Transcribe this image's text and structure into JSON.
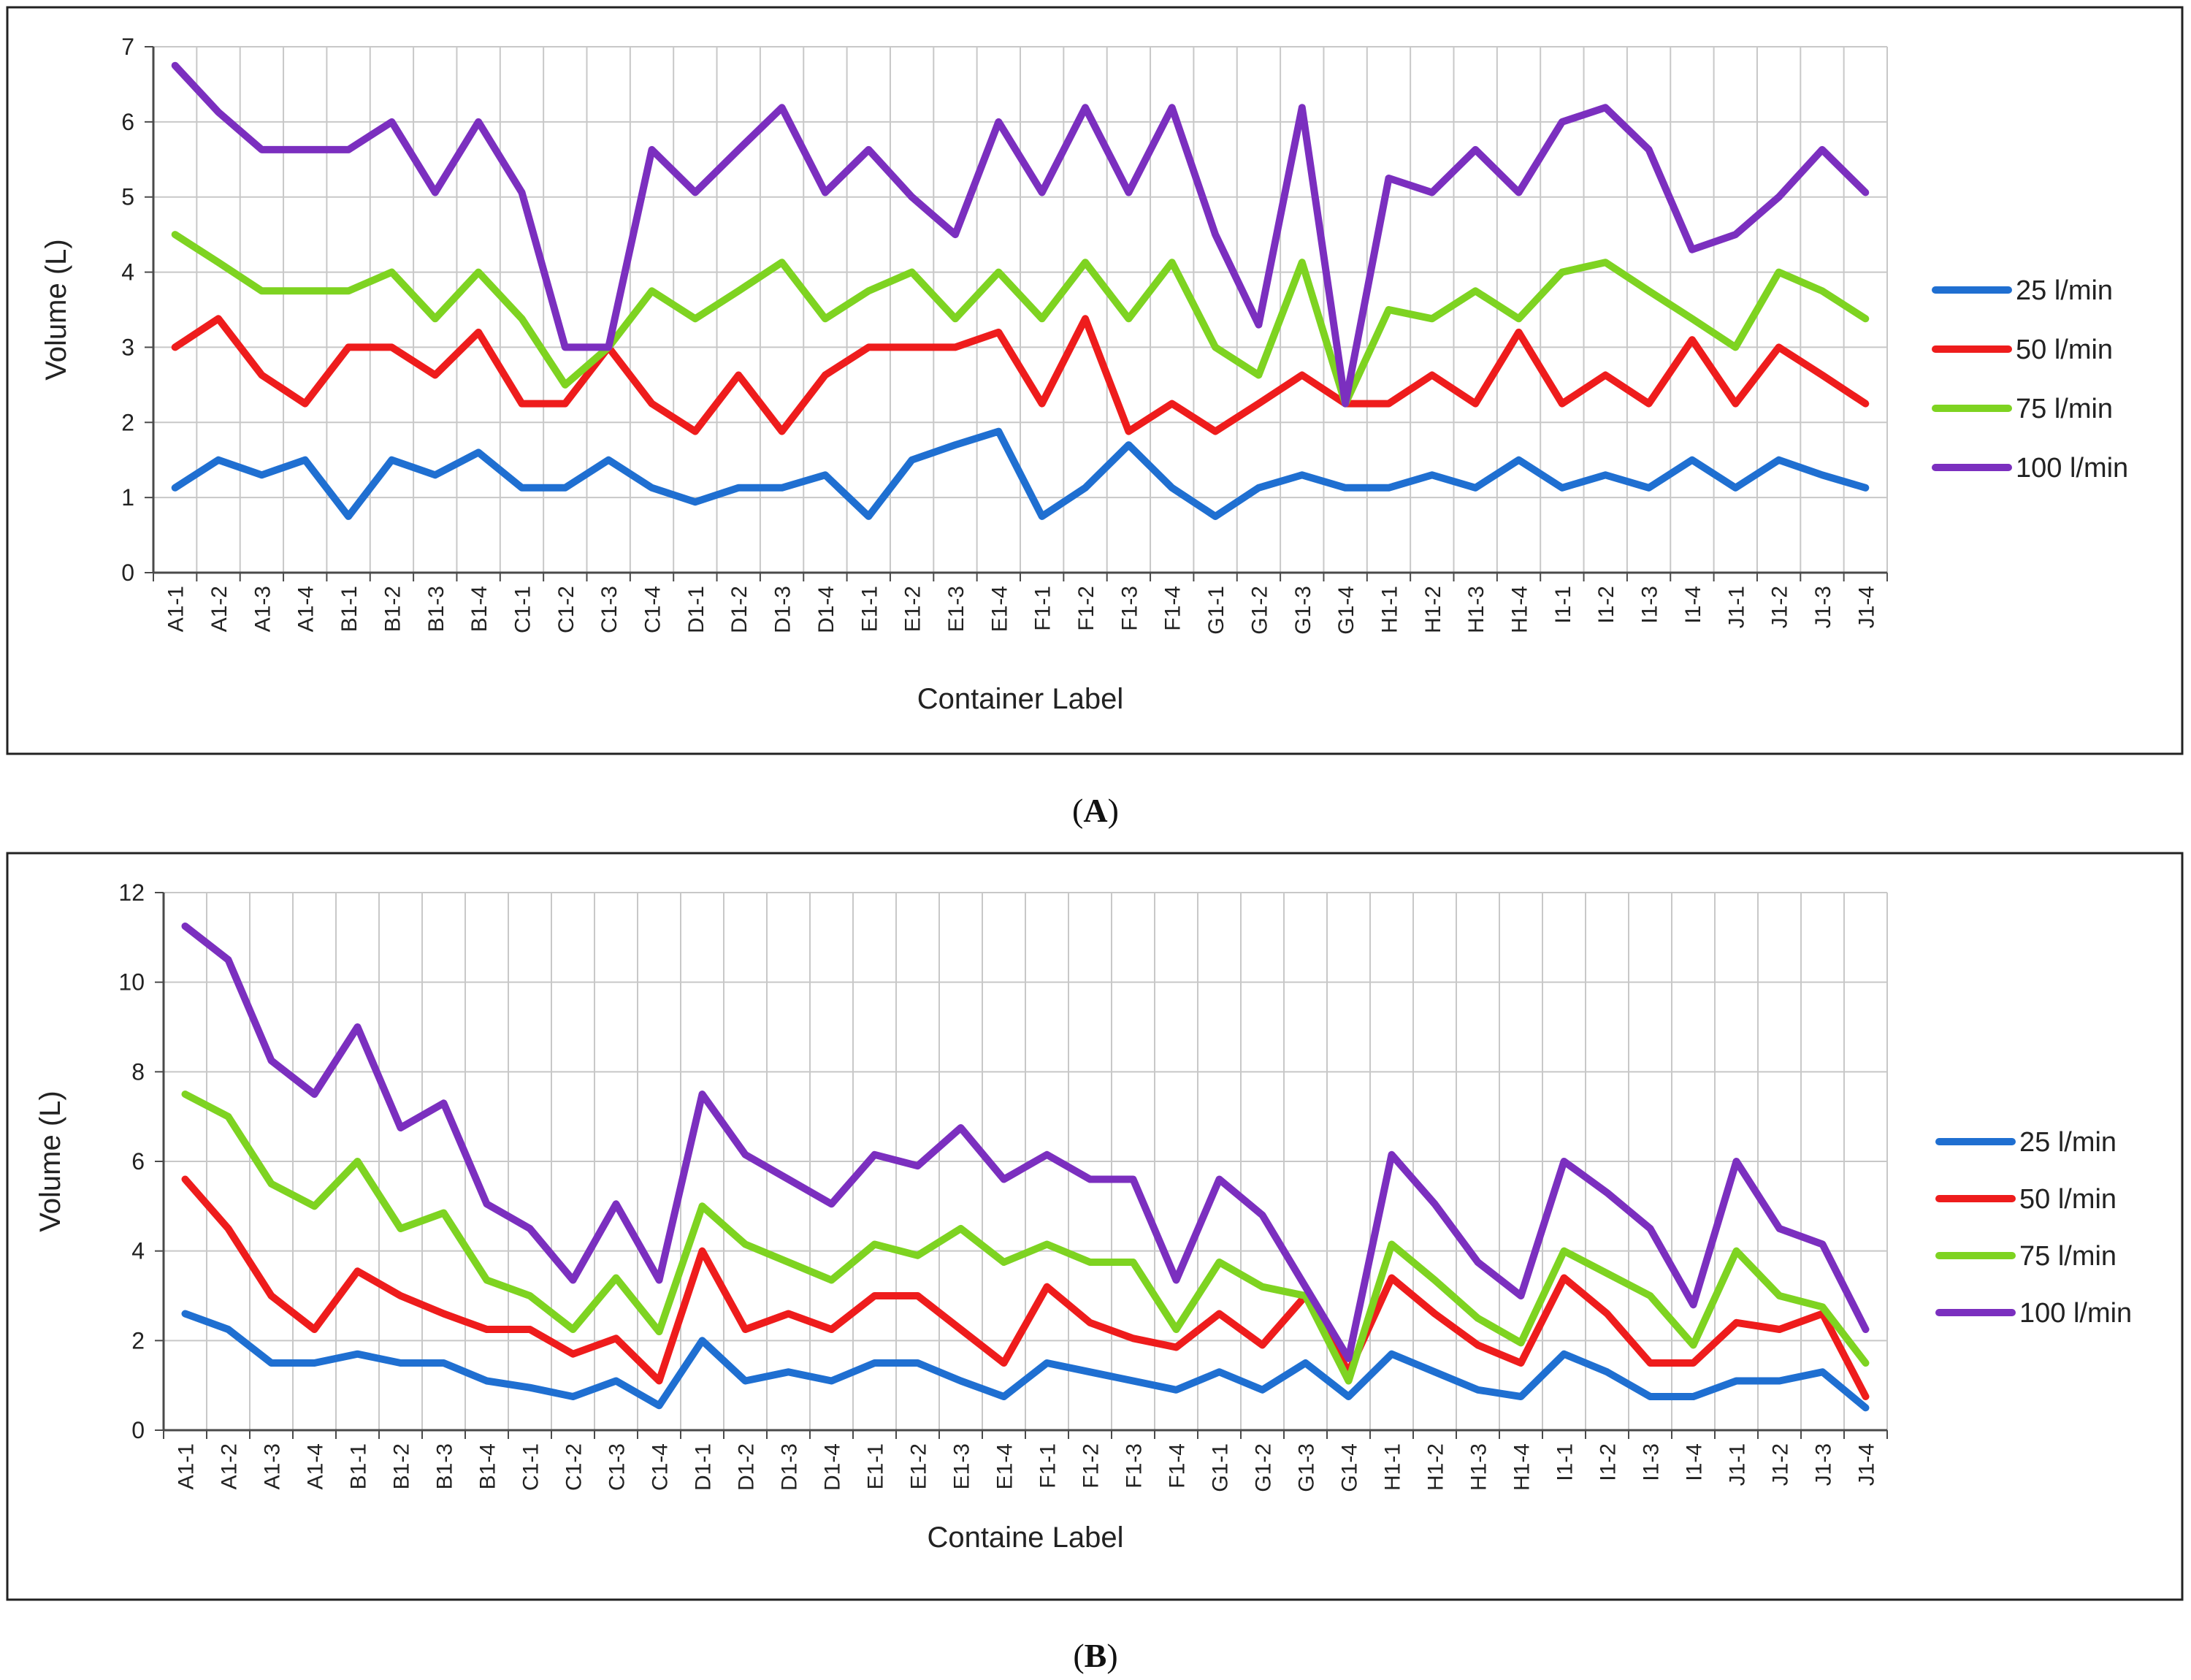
{
  "colors": {
    "s25": "#1f6fd1",
    "s50": "#ee1c1c",
    "s75": "#7ed321",
    "s100": "#7b2fbf"
  },
  "chart_data": [
    {
      "panel": "A",
      "type": "line",
      "title": "",
      "xlabel": "Container Label",
      "ylabel": "Volume (L)",
      "ylim": [
        0,
        7
      ],
      "yticks": [
        0,
        1,
        2,
        3,
        4,
        5,
        6,
        7
      ],
      "legend": "right",
      "categories": [
        "A1-1",
        "A1-2",
        "A1-3",
        "A1-4",
        "B1-1",
        "B1-2",
        "B1-3",
        "B1-4",
        "C1-1",
        "C1-2",
        "C1-3",
        "C1-4",
        "D1-1",
        "D1-2",
        "D1-3",
        "D1-4",
        "E1-1",
        "E1-2",
        "E1-3",
        "E1-4",
        "F1-1",
        "F1-2",
        "F1-3",
        "F1-4",
        "G1-1",
        "G1-2",
        "G1-3",
        "G1-4",
        "H1-1",
        "H1-2",
        "H1-3",
        "H1-4",
        "I1-1",
        "I1-2",
        "I1-3",
        "I1-4",
        "J1-1",
        "J1-2",
        "J1-3",
        "J1-4"
      ],
      "series": [
        {
          "name": "25 l/min",
          "color": "#1f6fd1",
          "values": [
            1.13,
            1.5,
            1.3,
            1.5,
            0.75,
            1.5,
            1.3,
            1.6,
            1.13,
            1.13,
            1.5,
            1.13,
            0.94,
            1.13,
            1.13,
            1.3,
            0.75,
            1.5,
            1.7,
            1.88,
            0.75,
            1.13,
            1.7,
            1.13,
            0.75,
            1.13,
            1.3,
            1.13,
            1.13,
            1.3,
            1.13,
            1.5,
            1.13,
            1.3,
            1.13,
            1.5,
            1.13,
            1.5,
            1.3,
            1.13
          ]
        },
        {
          "name": "50 l/min",
          "color": "#ee1c1c",
          "values": [
            3.0,
            3.38,
            2.63,
            2.25,
            3.0,
            3.0,
            2.63,
            3.2,
            2.25,
            2.25,
            3.0,
            2.25,
            1.88,
            2.63,
            1.88,
            2.63,
            3.0,
            3.0,
            3.0,
            3.2,
            2.25,
            3.38,
            1.88,
            2.25,
            1.88,
            2.25,
            2.63,
            2.25,
            2.25,
            2.63,
            2.25,
            3.2,
            2.25,
            2.63,
            2.25,
            3.1,
            2.25,
            3.0,
            2.63,
            2.25
          ]
        },
        {
          "name": "75 l/min",
          "color": "#7ed321",
          "values": [
            4.5,
            4.13,
            3.75,
            3.75,
            3.75,
            4.0,
            3.38,
            4.0,
            3.38,
            2.5,
            3.0,
            3.75,
            3.38,
            3.75,
            4.13,
            3.38,
            3.75,
            4.0,
            3.38,
            4.0,
            3.38,
            4.13,
            3.38,
            4.13,
            3.0,
            2.63,
            4.13,
            2.25,
            3.5,
            3.38,
            3.75,
            3.38,
            4.0,
            4.13,
            3.75,
            3.38,
            3.0,
            4.0,
            3.75,
            3.38
          ]
        },
        {
          "name": "100 l/min",
          "color": "#7b2fbf",
          "values": [
            6.75,
            6.13,
            5.63,
            5.63,
            5.63,
            6.0,
            5.06,
            6.0,
            5.06,
            3.0,
            3.0,
            5.63,
            5.06,
            5.63,
            6.19,
            5.06,
            5.63,
            5.0,
            4.5,
            6.0,
            5.06,
            6.19,
            5.06,
            6.19,
            4.5,
            3.3,
            6.19,
            2.25,
            5.25,
            5.06,
            5.63,
            5.06,
            6.0,
            6.19,
            5.63,
            4.3,
            4.5,
            5.0,
            5.63,
            5.06
          ]
        }
      ]
    },
    {
      "panel": "B",
      "type": "line",
      "title": "",
      "xlabel": "Containe Label",
      "ylabel": "Volume (L)",
      "ylim": [
        0,
        12
      ],
      "yticks": [
        0,
        2,
        4,
        6,
        8,
        10,
        12
      ],
      "legend": "right",
      "categories": [
        "A1-1",
        "A1-2",
        "A1-3",
        "A1-4",
        "B1-1",
        "B1-2",
        "B1-3",
        "B1-4",
        "C1-1",
        "C1-2",
        "C1-3",
        "C1-4",
        "D1-1",
        "D1-2",
        "D1-3",
        "D1-4",
        "E1-1",
        "E1-2",
        "E1-3",
        "E1-4",
        "F1-1",
        "F1-2",
        "F1-3",
        "F1-4",
        "G1-1",
        "G1-2",
        "G1-3",
        "G1-4",
        "H1-1",
        "H1-2",
        "H1-3",
        "H1-4",
        "I1-1",
        "I1-2",
        "I1-3",
        "I1-4",
        "J1-1",
        "J1-2",
        "J1-3",
        "J1-4"
      ],
      "series": [
        {
          "name": "25 l/min",
          "color": "#1f6fd1",
          "values": [
            2.6,
            2.25,
            1.5,
            1.5,
            1.7,
            1.5,
            1.5,
            1.1,
            0.95,
            0.75,
            1.1,
            0.55,
            2.0,
            1.1,
            1.3,
            1.1,
            1.5,
            1.5,
            1.1,
            0.75,
            1.5,
            1.3,
            1.1,
            0.9,
            1.3,
            0.9,
            1.5,
            0.75,
            1.7,
            1.3,
            0.9,
            0.75,
            1.7,
            1.3,
            0.75,
            0.75,
            1.1,
            1.1,
            1.3,
            0.5
          ]
        },
        {
          "name": "50 l/min",
          "color": "#ee1c1c",
          "values": [
            5.6,
            4.5,
            3.0,
            2.25,
            3.55,
            3.0,
            2.6,
            2.25,
            2.25,
            1.7,
            2.05,
            1.1,
            4.0,
            2.25,
            2.6,
            2.25,
            3.0,
            3.0,
            2.25,
            1.5,
            3.2,
            2.4,
            2.05,
            1.85,
            2.6,
            1.9,
            3.0,
            1.3,
            3.4,
            2.6,
            1.9,
            1.5,
            3.4,
            2.6,
            1.5,
            1.5,
            2.4,
            2.25,
            2.6,
            0.75
          ]
        },
        {
          "name": "75 l/min",
          "color": "#7ed321",
          "values": [
            7.5,
            7.0,
            5.5,
            5.0,
            6.0,
            4.5,
            4.85,
            3.35,
            3.0,
            2.25,
            3.4,
            2.2,
            5.0,
            4.15,
            3.75,
            3.35,
            4.15,
            3.9,
            4.5,
            3.75,
            4.15,
            3.75,
            3.75,
            2.25,
            3.75,
            3.2,
            3.0,
            1.1,
            4.15,
            3.35,
            2.5,
            1.95,
            4.0,
            3.5,
            3.0,
            1.9,
            4.0,
            3.0,
            2.75,
            1.5
          ]
        },
        {
          "name": "100 l/min",
          "color": "#7b2fbf",
          "values": [
            11.25,
            10.5,
            8.25,
            7.5,
            9.0,
            6.75,
            7.3,
            5.05,
            4.5,
            3.35,
            5.05,
            3.35,
            7.5,
            6.15,
            5.6,
            5.05,
            6.15,
            5.9,
            6.75,
            5.6,
            6.15,
            5.6,
            5.6,
            3.35,
            5.6,
            4.8,
            3.2,
            1.6,
            6.15,
            5.05,
            3.75,
            3.0,
            6.0,
            5.3,
            4.5,
            2.8,
            6.0,
            4.5,
            4.15,
            2.25
          ]
        }
      ]
    }
  ]
}
